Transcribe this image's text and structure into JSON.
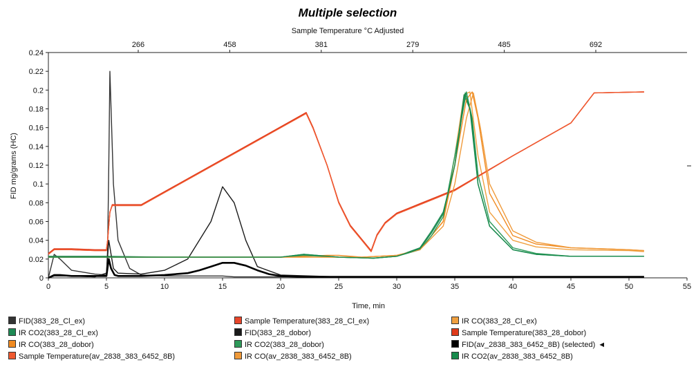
{
  "chart_data": {
    "type": "line",
    "title": "Multiple selection",
    "top_axis_label": "Sample Temperature °C Adjusted",
    "top_tick_labels": [
      "266",
      "458",
      "381",
      "279",
      "485",
      "692"
    ],
    "xlabel": "Time, min",
    "ylabel": "FID mg/grams (HC)",
    "xlim": [
      0,
      55
    ],
    "ylim": [
      0,
      0.24
    ],
    "x_ticks": [
      0,
      5,
      10,
      15,
      20,
      25,
      30,
      35,
      40,
      45,
      50,
      55
    ],
    "y_ticks": [
      0,
      0.02,
      0.04,
      0.06,
      0.08,
      0.1,
      0.12,
      0.14,
      0.16,
      0.18,
      0.2,
      0.22,
      0.24
    ],
    "grid": false,
    "legend_position": "bottom",
    "series": [
      {
        "name": "FID(383_28_Cl_ex)",
        "color": "#333333",
        "x": [
          0,
          0.5,
          1,
          2,
          4,
          5,
          5.1,
          5.2,
          5.3,
          5.4,
          5.6,
          6,
          7,
          8,
          10,
          12,
          14,
          15,
          16,
          17,
          18,
          20,
          25,
          30,
          40,
          51.3
        ],
        "y": [
          0,
          0.025,
          0.02,
          0.008,
          0.004,
          0.003,
          0.03,
          0.12,
          0.22,
          0.18,
          0.1,
          0.04,
          0.01,
          0.003,
          0.002,
          0.002,
          0.002,
          0.002,
          0.001,
          0.001,
          0.001,
          0.001,
          0.001,
          0.001,
          0.001,
          0.001
        ]
      },
      {
        "name": "Sample Temperature(383_28_Cl_ex)",
        "color": "#e8462a",
        "x": [
          0,
          0.5,
          1,
          2,
          4,
          5,
          5.1,
          5.3,
          5.5,
          6,
          7,
          8,
          22.2,
          22.8,
          24,
          25,
          26,
          27,
          27.8,
          28.3,
          29,
          30,
          31,
          32,
          35,
          40,
          45,
          47,
          51.3
        ],
        "y": [
          0.025,
          0.03,
          0.03,
          0.03,
          0.029,
          0.029,
          0.04,
          0.07,
          0.077,
          0.077,
          0.077,
          0.077,
          0.176,
          0.16,
          0.12,
          0.08,
          0.055,
          0.04,
          0.028,
          0.045,
          0.058,
          0.068,
          0.073,
          0.078,
          0.093,
          0.13,
          0.165,
          0.197,
          0.198
        ]
      },
      {
        "name": "IR CO(383_28_Cl_ex)",
        "color": "#f0a040",
        "x": [
          0,
          5,
          10,
          15,
          20,
          25,
          27,
          30,
          32,
          34,
          35,
          35.8,
          36.3,
          37,
          38,
          40,
          42,
          45,
          50,
          51.3
        ],
        "y": [
          0.022,
          0.022,
          0.022,
          0.022,
          0.022,
          0.022,
          0.022,
          0.024,
          0.03,
          0.06,
          0.13,
          0.195,
          0.198,
          0.13,
          0.07,
          0.04,
          0.033,
          0.03,
          0.029,
          0.028
        ]
      },
      {
        "name": "IR CO2(383_28_Cl_ex)",
        "color": "#1e8a55",
        "x": [
          0,
          5,
          10,
          15,
          20,
          22,
          25,
          28,
          30,
          32,
          33,
          34,
          35,
          35.8,
          36.3,
          37,
          38,
          40,
          42,
          45,
          50,
          51.3
        ],
        "y": [
          0.023,
          0.023,
          0.022,
          0.022,
          0.022,
          0.025,
          0.022,
          0.021,
          0.023,
          0.032,
          0.05,
          0.07,
          0.12,
          0.195,
          0.18,
          0.1,
          0.055,
          0.03,
          0.025,
          0.023,
          0.023,
          0.023
        ]
      },
      {
        "name": "FID(383_28_dobor)",
        "color": "#1a1a1a",
        "x": [
          0,
          0.5,
          1,
          2,
          4,
          5,
          5.2,
          5.4,
          5.6,
          6,
          8,
          10,
          12,
          14,
          15,
          16,
          17,
          18,
          20,
          25,
          30,
          51.3
        ],
        "y": [
          0,
          0.002,
          0.002,
          0.002,
          0.001,
          0.005,
          0.04,
          0.025,
          0.01,
          0.005,
          0.004,
          0.008,
          0.02,
          0.06,
          0.097,
          0.08,
          0.04,
          0.012,
          0.003,
          0.001,
          0.001,
          0.001
        ]
      },
      {
        "name": "Sample Temperature(383_28_dobor)",
        "color": "#e03a1a",
        "x": [
          0,
          0.5,
          1,
          2,
          4,
          5,
          5.1,
          5.3,
          5.5,
          6,
          7,
          8,
          22.2,
          22.8,
          24,
          25,
          26,
          27,
          27.8,
          28.3,
          29,
          30,
          31,
          32,
          35,
          40,
          45,
          47,
          51.3
        ],
        "y": [
          0.026,
          0.031,
          0.031,
          0.031,
          0.03,
          0.03,
          0.04,
          0.07,
          0.078,
          0.078,
          0.078,
          0.078,
          0.176,
          0.16,
          0.12,
          0.081,
          0.056,
          0.041,
          0.029,
          0.046,
          0.059,
          0.069,
          0.074,
          0.079,
          0.094,
          0.13,
          0.165,
          0.197,
          0.198
        ]
      },
      {
        "name": "IR CO(383_28_dobor)",
        "color": "#f08a20",
        "x": [
          0,
          5,
          10,
          15,
          20,
          24,
          25,
          27,
          30,
          32,
          34,
          35,
          36,
          36.5,
          37,
          38,
          40,
          42,
          45,
          50,
          51.3
        ],
        "y": [
          0.022,
          0.022,
          0.022,
          0.022,
          0.022,
          0.024,
          0.024,
          0.022,
          0.024,
          0.03,
          0.06,
          0.12,
          0.19,
          0.198,
          0.17,
          0.09,
          0.045,
          0.036,
          0.032,
          0.03,
          0.029
        ]
      },
      {
        "name": "IR CO2(383_28_dobor)",
        "color": "#2e9a5a",
        "x": [
          0,
          5,
          10,
          15,
          20,
          22,
          25,
          28,
          30,
          32,
          33,
          34,
          35,
          36,
          36.5,
          37,
          38,
          40,
          42,
          45,
          50,
          51.3
        ],
        "y": [
          0.022,
          0.022,
          0.022,
          0.022,
          0.022,
          0.024,
          0.022,
          0.021,
          0.023,
          0.03,
          0.045,
          0.065,
          0.13,
          0.198,
          0.17,
          0.11,
          0.06,
          0.032,
          0.026,
          0.023,
          0.023,
          0.023
        ]
      },
      {
        "name": "FID(av_2838_383_6452_8B) (selected)",
        "color": "#000000",
        "x": [
          0,
          0.5,
          1,
          2,
          4,
          5,
          5.2,
          5.4,
          5.7,
          6,
          8,
          10,
          12,
          13,
          14,
          15,
          16,
          17,
          18,
          19,
          20,
          22,
          25,
          30,
          51.3
        ],
        "y": [
          0,
          0.003,
          0.003,
          0.002,
          0.002,
          0.002,
          0.02,
          0.01,
          0.003,
          0.002,
          0.002,
          0.003,
          0.005,
          0.008,
          0.012,
          0.016,
          0.016,
          0.013,
          0.008,
          0.004,
          0.002,
          0.001,
          0.001,
          0.001,
          0.001
        ]
      },
      {
        "name": "Sample Temperature(av_2838_383_6452_8B)",
        "color": "#f05a30",
        "x": [
          0,
          0.5,
          1,
          2,
          4,
          5,
          5.1,
          5.3,
          5.5,
          6,
          7,
          8,
          22.2,
          22.8,
          24,
          25,
          26,
          27,
          27.8,
          28.3,
          29,
          30,
          31,
          32,
          35,
          40,
          45,
          47,
          51.3
        ],
        "y": [
          0.025,
          0.03,
          0.03,
          0.03,
          0.029,
          0.029,
          0.04,
          0.07,
          0.077,
          0.077,
          0.077,
          0.077,
          0.175,
          0.159,
          0.12,
          0.08,
          0.055,
          0.04,
          0.028,
          0.045,
          0.058,
          0.068,
          0.073,
          0.078,
          0.093,
          0.13,
          0.165,
          0.197,
          0.198
        ]
      },
      {
        "name": "IR CO(av_2838_383_6452_8B)",
        "color": "#f09a3a",
        "x": [
          0,
          5,
          10,
          15,
          20,
          25,
          27,
          30,
          32,
          34,
          35,
          36,
          36.6,
          37.2,
          38,
          40,
          42,
          45,
          50,
          51.3
        ],
        "y": [
          0.022,
          0.022,
          0.022,
          0.022,
          0.022,
          0.022,
          0.022,
          0.024,
          0.03,
          0.055,
          0.1,
          0.17,
          0.197,
          0.16,
          0.1,
          0.05,
          0.038,
          0.032,
          0.03,
          0.029
        ]
      },
      {
        "name": "IR CO2(av_2838_383_6452_8B)",
        "color": "#178a4c",
        "x": [
          0,
          5,
          10,
          15,
          20,
          22,
          25,
          28,
          30,
          32,
          33,
          34,
          35,
          35.9,
          36.4,
          37,
          38,
          40,
          42,
          45,
          50,
          51.3
        ],
        "y": [
          0.022,
          0.022,
          0.022,
          0.022,
          0.022,
          0.025,
          0.022,
          0.021,
          0.023,
          0.031,
          0.048,
          0.068,
          0.12,
          0.197,
          0.175,
          0.1,
          0.055,
          0.03,
          0.025,
          0.023,
          0.023,
          0.023
        ]
      }
    ]
  },
  "legend": {
    "selected_marker": "◄",
    "items": [
      {
        "label": "FID(383_28_Cl_ex)",
        "color": "#333333"
      },
      {
        "label": "Sample Temperature(383_28_Cl_ex)",
        "color": "#e8462a"
      },
      {
        "label": "IR CO(383_28_Cl_ex)",
        "color": "#f0a040"
      },
      {
        "label": "IR CO2(383_28_Cl_ex)",
        "color": "#1e8a55"
      },
      {
        "label": "FID(383_28_dobor)",
        "color": "#1a1a1a"
      },
      {
        "label": "Sample Temperature(383_28_dobor)",
        "color": "#e03a1a"
      },
      {
        "label": "IR CO(383_28_dobor)",
        "color": "#f08a20"
      },
      {
        "label": "IR CO2(383_28_dobor)",
        "color": "#2e9a5a"
      },
      {
        "label": "FID(av_2838_383_6452_8B) (selected)",
        "color": "#000000"
      },
      {
        "label": "Sample Temperature(av_2838_383_6452_8B)",
        "color": "#f05a30"
      },
      {
        "label": "IR CO(av_2838_383_6452_8B)",
        "color": "#f09a3a"
      },
      {
        "label": "IR CO2(av_2838_383_6452_8B)",
        "color": "#178a4c"
      }
    ]
  }
}
